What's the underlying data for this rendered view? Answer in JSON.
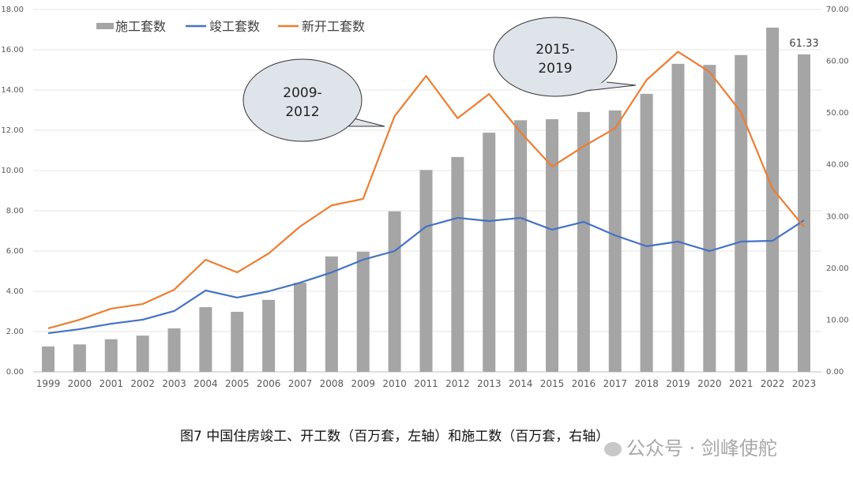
{
  "chart_data": {
    "type": "bar+line",
    "categories": [
      "1999",
      "2000",
      "2001",
      "2002",
      "2003",
      "2004",
      "2005",
      "2006",
      "2007",
      "2008",
      "2009",
      "2010",
      "2011",
      "2012",
      "2013",
      "2014",
      "2015",
      "2016",
      "2017",
      "2018",
      "2019",
      "2020",
      "2021",
      "2022",
      "2023"
    ],
    "series": [
      {
        "name": "施工套数",
        "type": "bar",
        "axis": "right",
        "color": "#a5a5a5",
        "values": [
          4.9,
          5.3,
          6.3,
          7.0,
          8.4,
          12.5,
          11.6,
          13.9,
          17.2,
          22.3,
          23.2,
          31.0,
          39.0,
          41.5,
          46.2,
          48.6,
          48.8,
          50.2,
          50.5,
          53.7,
          59.5,
          59.3,
          61.2,
          66.5,
          61.33
        ]
      },
      {
        "name": "竣工套数",
        "type": "line",
        "axis": "left",
        "color": "#4472c4",
        "values": [
          1.92,
          2.12,
          2.39,
          2.59,
          3.02,
          4.04,
          3.69,
          4.0,
          4.43,
          4.94,
          5.57,
          6.0,
          7.22,
          7.65,
          7.49,
          7.65,
          7.06,
          7.45,
          6.78,
          6.24,
          6.47,
          6.0,
          6.47,
          6.51,
          7.53
        ]
      },
      {
        "name": "新开工套数",
        "type": "line",
        "axis": "left",
        "color": "#ed7d31",
        "values": [
          2.16,
          2.59,
          3.14,
          3.37,
          4.08,
          5.57,
          4.94,
          5.88,
          7.22,
          8.27,
          8.59,
          12.7,
          14.7,
          12.6,
          13.8,
          11.9,
          10.2,
          11.2,
          12.1,
          14.5,
          15.9,
          14.9,
          12.9,
          9.1,
          7.2
        ]
      }
    ],
    "left_axis": {
      "range": [
        0,
        18
      ],
      "ticks": [
        "0.00",
        "2.00",
        "4.00",
        "6.00",
        "8.00",
        "10.00",
        "12.00",
        "14.00",
        "16.00",
        "18.00"
      ]
    },
    "right_axis": {
      "range": [
        0,
        70
      ],
      "ticks": [
        "0.00",
        "10.00",
        "20.00",
        "30.00",
        "40.00",
        "50.00",
        "60.00",
        "70.00"
      ]
    },
    "data_label": {
      "text": "61.33",
      "series": "施工套数",
      "category": "2023"
    },
    "annotations": [
      {
        "line1": "2009-",
        "line2": "2012",
        "category": "2010"
      },
      {
        "line1": "2015-",
        "line2": "2019",
        "category": "2018"
      }
    ],
    "legend": "top-left",
    "grid": true
  },
  "caption": "图7 中国住房竣工、开工数（百万套，左轴）和施工数（百万套，右轴）",
  "watermark": "公众号 · 剑峰使舵"
}
